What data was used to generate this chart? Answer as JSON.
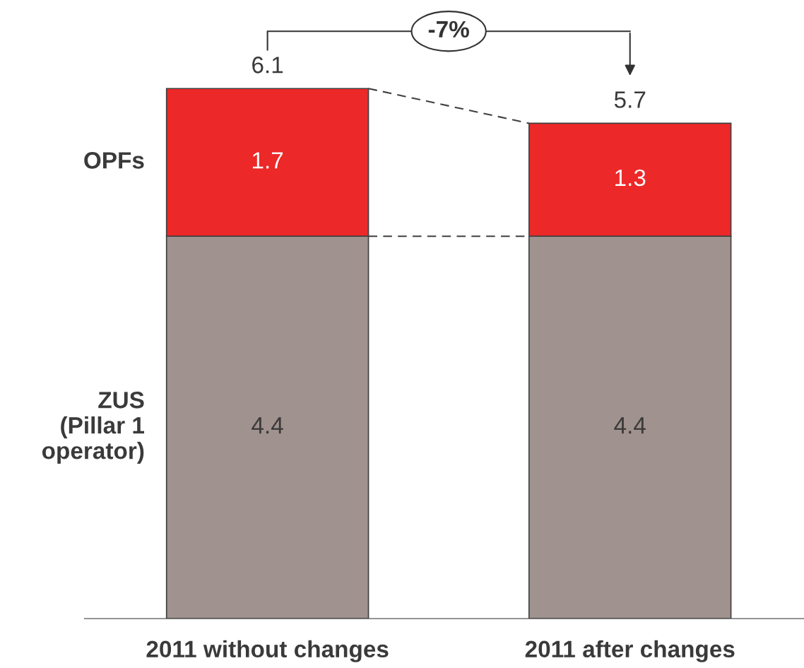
{
  "chart_data": {
    "type": "bar",
    "stacked": true,
    "data_labels": true,
    "categories": [
      "2011 without changes",
      "2011 after changes"
    ],
    "series": [
      {
        "name": "ZUS\n(Pillar 1\noperator)",
        "color": "#a0928e",
        "values": [
          4.4,
          4.4
        ]
      },
      {
        "name": "OPFs",
        "color": "#ec2828",
        "values": [
          1.7,
          1.3
        ]
      }
    ],
    "totals": [
      "6.1",
      "5.7"
    ],
    "annotations": [
      "-7%"
    ]
  }
}
